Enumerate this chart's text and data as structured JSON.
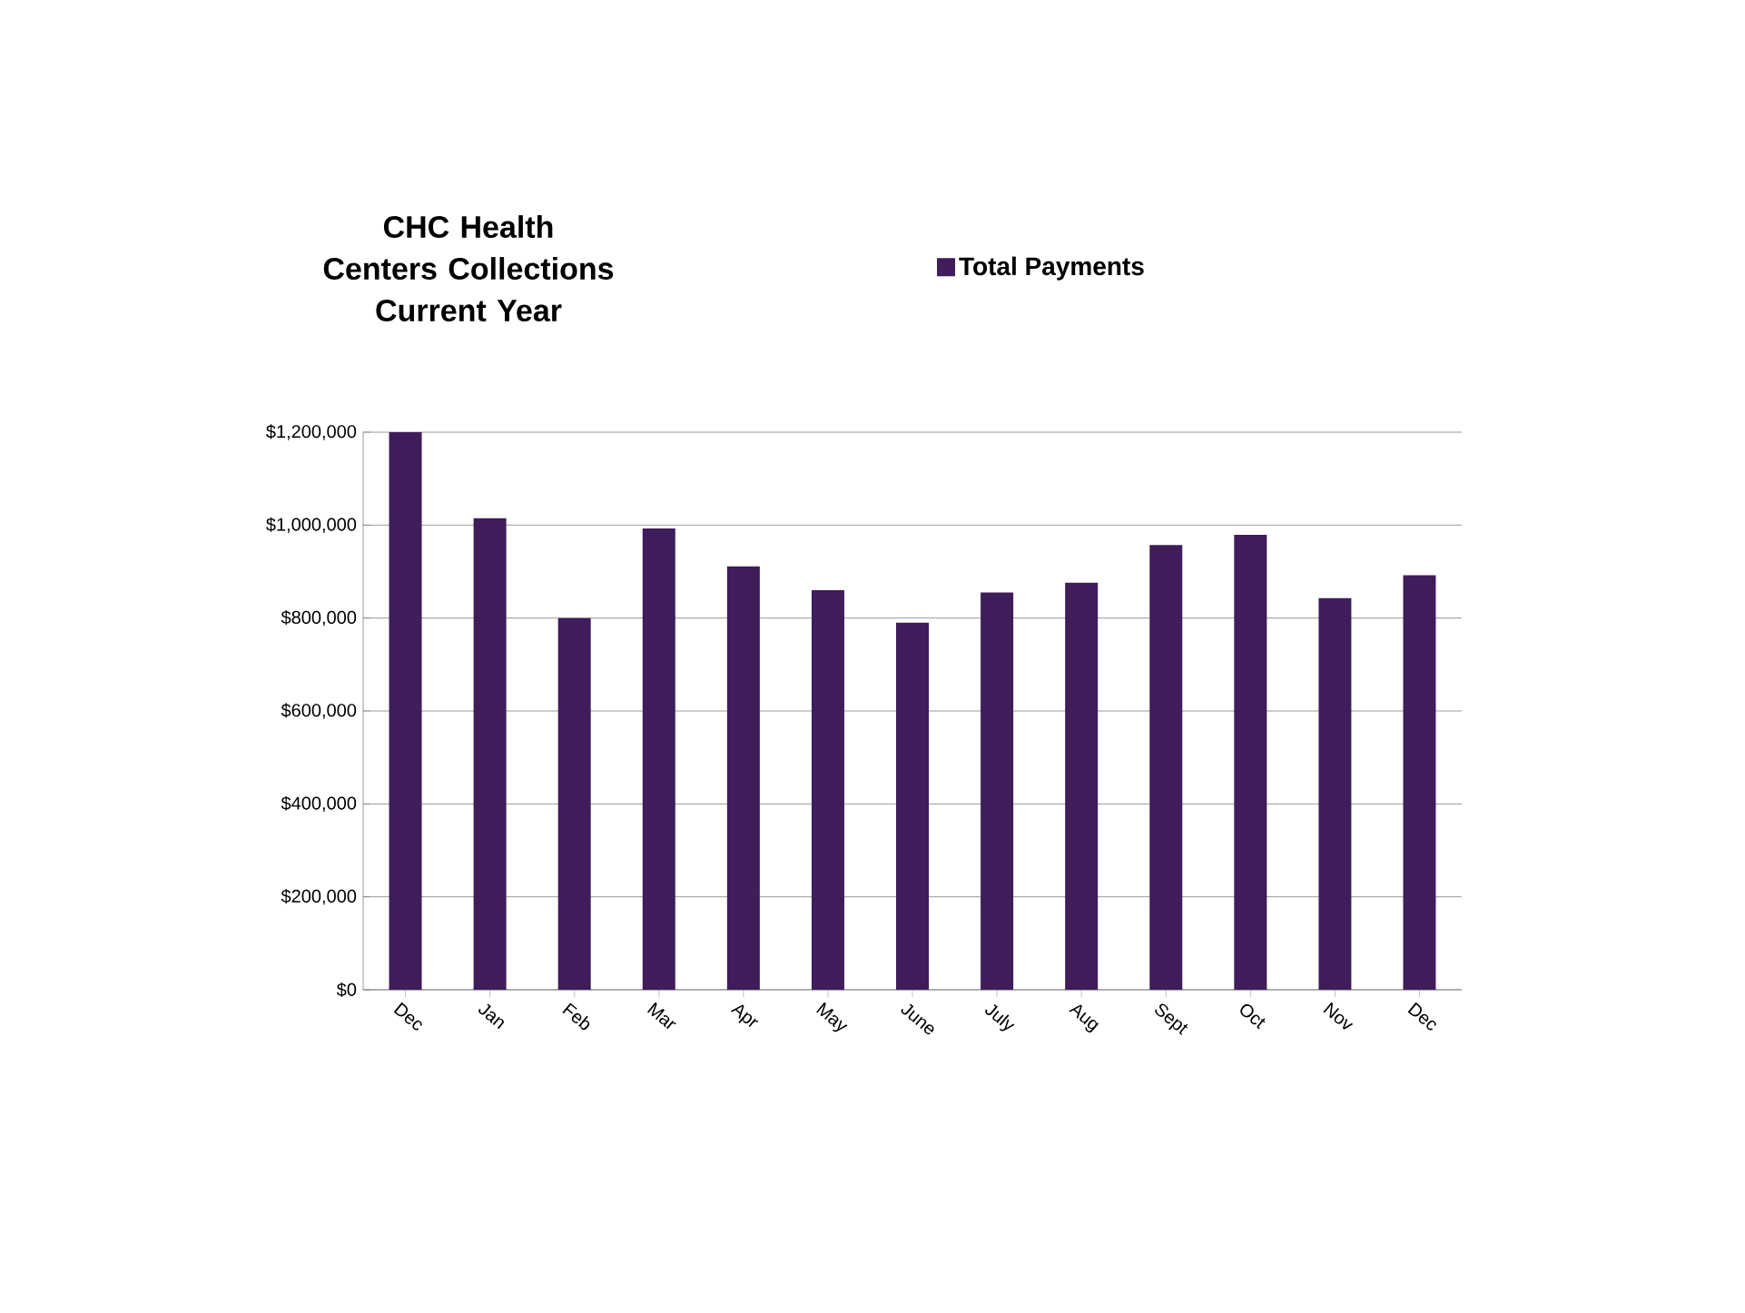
{
  "chart_data": {
    "type": "bar",
    "title": "CHC  Health Centers Collections",
    "subtitle": "Current Year",
    "categories": [
      "Dec",
      "Jan",
      "Feb",
      "Mar",
      "Apr",
      "May",
      "June",
      "July",
      "Aug",
      "Sept",
      "Oct",
      "Nov",
      "Dec"
    ],
    "series": [
      {
        "name": "Total Payments",
        "color": "#3f1c5a",
        "values": [
          1200000,
          1015000,
          800000,
          993000,
          911000,
          860000,
          790000,
          855000,
          876000,
          957000,
          979000,
          843000,
          892000
        ]
      }
    ],
    "ylim": [
      0,
      1200000
    ],
    "yticks": [
      {
        "value": 0,
        "label": "$0"
      },
      {
        "value": 200000,
        "label": "$200,000"
      },
      {
        "value": 400000,
        "label": "$400,000"
      },
      {
        "value": 600000,
        "label": "$600,000"
      },
      {
        "value": 800000,
        "label": "$800,000"
      },
      {
        "value": 1000000,
        "label": "$1,000,000"
      },
      {
        "value": 1200000,
        "label": "$1,200,000"
      }
    ],
    "grid": "y",
    "legend": "top"
  }
}
